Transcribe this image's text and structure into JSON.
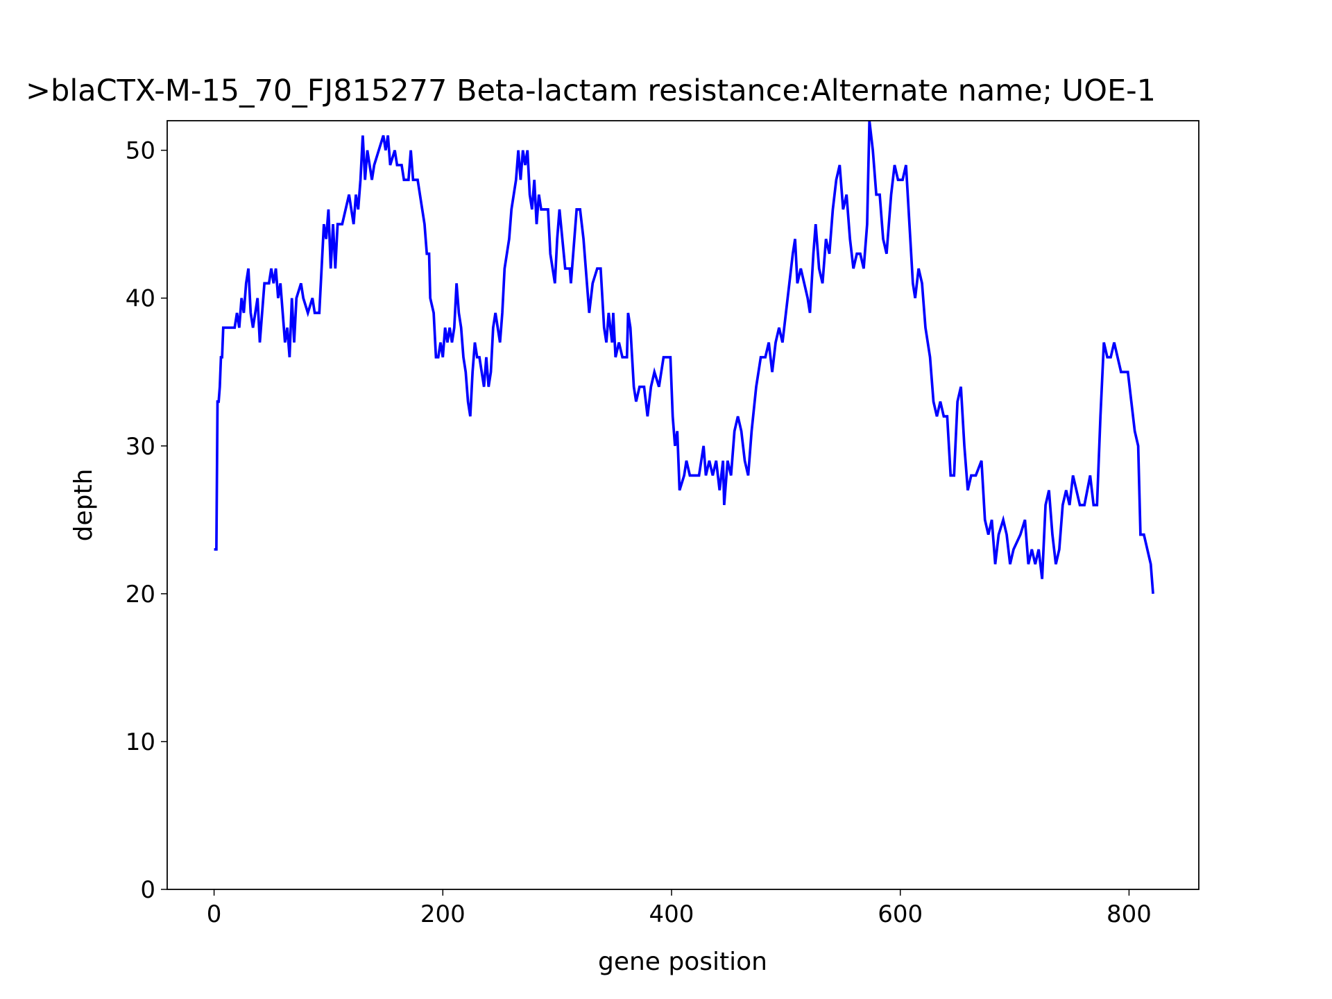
{
  "chart_data": {
    "type": "line",
    "title": ">blaCTX-M-15_70_FJ815277 Beta-lactam resistance:Alternate name; UOE-1",
    "xlabel": "gene position",
    "ylabel": "depth",
    "xlim": [
      -41,
      861
    ],
    "ylim": [
      0,
      52
    ],
    "xticks": [
      0,
      200,
      400,
      600,
      800
    ],
    "yticks": [
      0,
      10,
      20,
      30,
      40,
      50
    ],
    "grid": false,
    "series": [
      {
        "name": "depth",
        "color": "#0000ff",
        "x": [
          0,
          2,
          3,
          4,
          5,
          6,
          7,
          8,
          12,
          18,
          20,
          22,
          24,
          26,
          28,
          30,
          32,
          34,
          36,
          38,
          40,
          42,
          44,
          48,
          50,
          52,
          54,
          56,
          58,
          60,
          62,
          64,
          66,
          68,
          70,
          72,
          76,
          78,
          82,
          86,
          88,
          92,
          94,
          96,
          98,
          100,
          102,
          104,
          106,
          108,
          112,
          118,
          120,
          122,
          124,
          126,
          128,
          130,
          132,
          134,
          136,
          138,
          140,
          144,
          148,
          150,
          152,
          154,
          158,
          160,
          164,
          166,
          170,
          172,
          174,
          178,
          180,
          182,
          184,
          186,
          188,
          189,
          192,
          194,
          196,
          198,
          200,
          202,
          204,
          206,
          208,
          210,
          212,
          214,
          216,
          218,
          220,
          222,
          224,
          226,
          228,
          230,
          232,
          234,
          236,
          238,
          240,
          242,
          244,
          246,
          248,
          250,
          252,
          254,
          256,
          258,
          260,
          262,
          264,
          266,
          268,
          270,
          272,
          274,
          276,
          278,
          280,
          282,
          284,
          286,
          292,
          294,
          296,
          298,
          300,
          302,
          307,
          311,
          312,
          314,
          317,
          320,
          323,
          326,
          328,
          331,
          335,
          338,
          341,
          343,
          345,
          348,
          349,
          351,
          354,
          357,
          361,
          362,
          364,
          367,
          369,
          372,
          376,
          379,
          382,
          385,
          389,
          393,
          399,
          401,
          403,
          405,
          407,
          411,
          413,
          416,
          424,
          428,
          430,
          433,
          436,
          439,
          442,
          445,
          446,
          449,
          452,
          455,
          458,
          461,
          464,
          467,
          470,
          474,
          478,
          482,
          485,
          488,
          491,
          494,
          497,
          500,
          503,
          506,
          508,
          510,
          513,
          516,
          519,
          521,
          524,
          526,
          529,
          532,
          535,
          538,
          541,
          544,
          547,
          550,
          553,
          556,
          559,
          562,
          565,
          568,
          571,
          573,
          576,
          579,
          582,
          585,
          588,
          592,
          595,
          598,
          602,
          605,
          608,
          611,
          613,
          616,
          619,
          622,
          626,
          629,
          632,
          635,
          638,
          641,
          644,
          647,
          650,
          653,
          656,
          659,
          662,
          666,
          671,
          674,
          677,
          680,
          683,
          686,
          690,
          693,
          696,
          699,
          705,
          709,
          712,
          715,
          718,
          721,
          724,
          727,
          730,
          733,
          736,
          739,
          742,
          745,
          748,
          751,
          754,
          757,
          761,
          766,
          769,
          772,
          775,
          778,
          781,
          784,
          787,
          790,
          793,
          799,
          802,
          805,
          808,
          810,
          813,
          816,
          819,
          821
        ],
        "values": [
          23,
          23,
          33,
          33,
          34,
          36,
          36,
          38,
          38,
          38,
          39,
          38,
          40,
          39,
          41,
          42,
          39,
          38,
          39,
          40,
          37,
          39,
          41,
          41,
          42,
          41,
          42,
          40,
          41,
          39,
          37,
          38,
          36,
          40,
          37,
          40,
          41,
          40,
          39,
          40,
          39,
          39,
          42,
          45,
          44,
          46,
          42,
          45,
          42,
          45,
          45,
          47,
          46,
          45,
          47,
          46,
          48,
          51,
          48,
          50,
          49,
          48,
          49,
          50,
          51,
          50,
          51,
          49,
          50,
          49,
          49,
          48,
          48,
          50,
          48,
          48,
          47,
          46,
          45,
          43,
          43,
          40,
          39,
          36,
          36,
          37,
          36,
          38,
          37,
          38,
          37,
          38,
          41,
          39,
          38,
          36,
          35,
          33,
          32,
          35,
          37,
          36,
          36,
          35,
          34,
          36,
          34,
          35,
          38,
          39,
          38,
          37,
          39,
          42,
          43,
          44,
          46,
          47,
          48,
          50,
          48,
          50,
          49,
          50,
          47,
          46,
          48,
          45,
          47,
          46,
          46,
          43,
          42,
          41,
          44,
          46,
          42,
          42,
          41,
          43,
          46,
          46,
          44,
          41,
          39,
          41,
          42,
          42,
          38,
          37,
          39,
          37,
          39,
          36,
          37,
          36,
          36,
          39,
          38,
          34,
          33,
          34,
          34,
          32,
          34,
          35,
          34,
          36,
          36,
          32,
          30,
          31,
          27,
          28,
          29,
          28,
          28,
          30,
          28,
          29,
          28,
          29,
          27,
          29,
          26,
          29,
          28,
          31,
          32,
          31,
          29,
          28,
          31,
          34,
          36,
          36,
          37,
          35,
          37,
          38,
          37,
          39,
          41,
          43,
          44,
          41,
          42,
          41,
          40,
          39,
          43,
          45,
          42,
          41,
          44,
          43,
          46,
          48,
          49,
          46,
          47,
          44,
          42,
          43,
          43,
          42,
          45,
          52,
          50,
          47,
          47,
          44,
          43,
          47,
          49,
          48,
          48,
          49,
          45,
          41,
          40,
          42,
          41,
          38,
          36,
          33,
          32,
          33,
          32,
          32,
          28,
          28,
          33,
          34,
          30,
          27,
          28,
          28,
          29,
          25,
          24,
          25,
          22,
          24,
          25,
          24,
          22,
          23,
          24,
          25,
          22,
          23,
          22,
          23,
          21,
          26,
          27,
          24,
          22,
          23,
          26,
          27,
          26,
          28,
          27,
          26,
          26,
          28,
          26,
          26,
          32,
          37,
          36,
          36,
          37,
          36,
          35,
          35,
          33,
          31,
          30,
          24,
          24,
          23,
          22,
          20
        ]
      }
    ]
  }
}
